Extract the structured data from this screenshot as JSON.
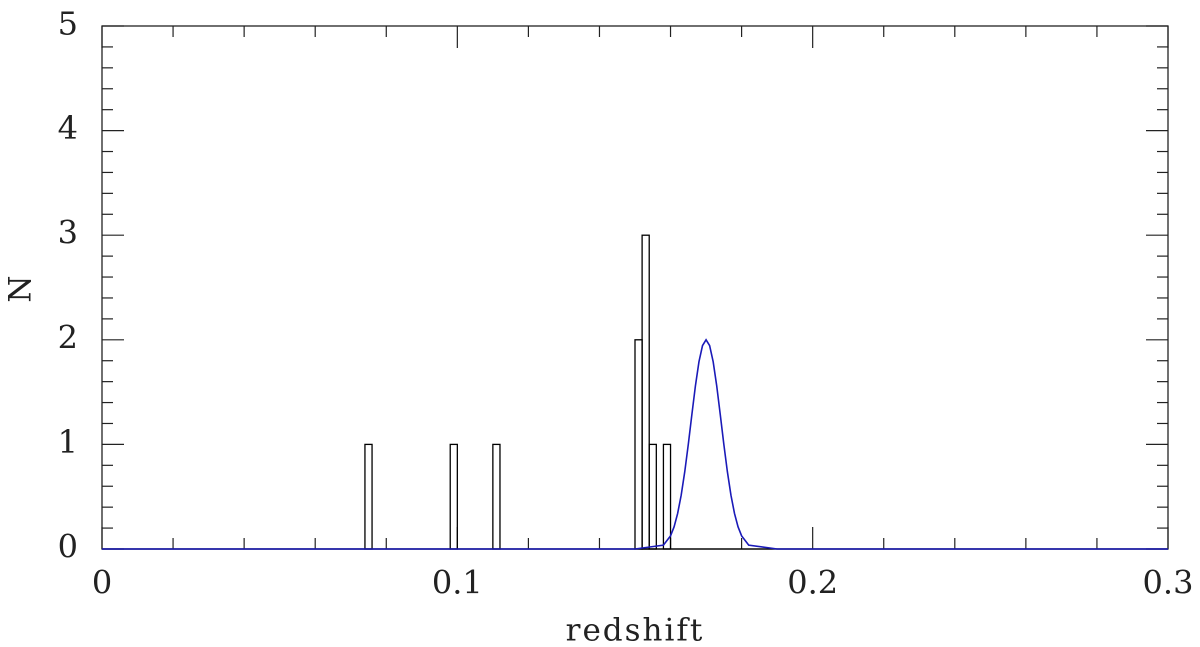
{
  "chart_data": {
    "type": "histogram",
    "xlabel": "redshift",
    "ylabel": "N",
    "xlim": [
      0,
      0.3
    ],
    "ylim": [
      0,
      5
    ],
    "xticks": [
      0,
      0.1,
      0.2,
      0.3
    ],
    "yticks": [
      0,
      1,
      2,
      3,
      4,
      5
    ],
    "xminorticks": [
      0.02,
      0.04,
      0.06,
      0.08,
      0.12,
      0.14,
      0.16,
      0.18,
      0.22,
      0.24,
      0.26,
      0.28
    ],
    "yminorticks": [
      0.2,
      0.4,
      0.6,
      0.8,
      1.2,
      1.4,
      1.6,
      1.8,
      2.2,
      2.4,
      2.6,
      2.8,
      3.2,
      3.4,
      3.6,
      3.8,
      4.2,
      4.4,
      4.6,
      4.8
    ],
    "color": "#000000",
    "bins": [
      0.074,
      0.076,
      0.078,
      0.08,
      0.082,
      0.084,
      0.086,
      0.088,
      0.09,
      0.092,
      0.094,
      0.096,
      0.098,
      0.1,
      0.102,
      0.104,
      0.106,
      0.108,
      0.11,
      0.112,
      0.114,
      0.116,
      0.118,
      0.12,
      0.122,
      0.124,
      0.126,
      0.128,
      0.13,
      0.132,
      0.134,
      0.136,
      0.138,
      0.14,
      0.142,
      0.144,
      0.146,
      0.148,
      0.15,
      0.152,
      0.154,
      0.156,
      0.158,
      0.16
    ],
    "counts": [
      1,
      0,
      0,
      0,
      0,
      0,
      0,
      0,
      0,
      0,
      0,
      0,
      1,
      0,
      0,
      0,
      0,
      0,
      1,
      0,
      0,
      0,
      0,
      0,
      0,
      0,
      0,
      0,
      0,
      0,
      0,
      0,
      0,
      0,
      0,
      0,
      0,
      0,
      2,
      3,
      1,
      0,
      1
    ],
    "overlay": {
      "type": "line",
      "color": "#1a1ab8",
      "x": [
        0,
        0.15,
        0.158,
        0.16,
        0.161,
        0.162,
        0.163,
        0.164,
        0.165,
        0.166,
        0.167,
        0.168,
        0.169,
        0.17,
        0.171,
        0.172,
        0.173,
        0.174,
        0.175,
        0.176,
        0.177,
        0.178,
        0.179,
        0.18,
        0.182,
        0.19,
        0.3
      ],
      "values": [
        0,
        0,
        0.037,
        0.126,
        0.212,
        0.34,
        0.515,
        0.738,
        1.001,
        1.284,
        1.559,
        1.79,
        1.945,
        2,
        1.945,
        1.79,
        1.559,
        1.284,
        1.001,
        0.738,
        0.515,
        0.34,
        0.212,
        0.126,
        0.037,
        0,
        0
      ]
    }
  }
}
